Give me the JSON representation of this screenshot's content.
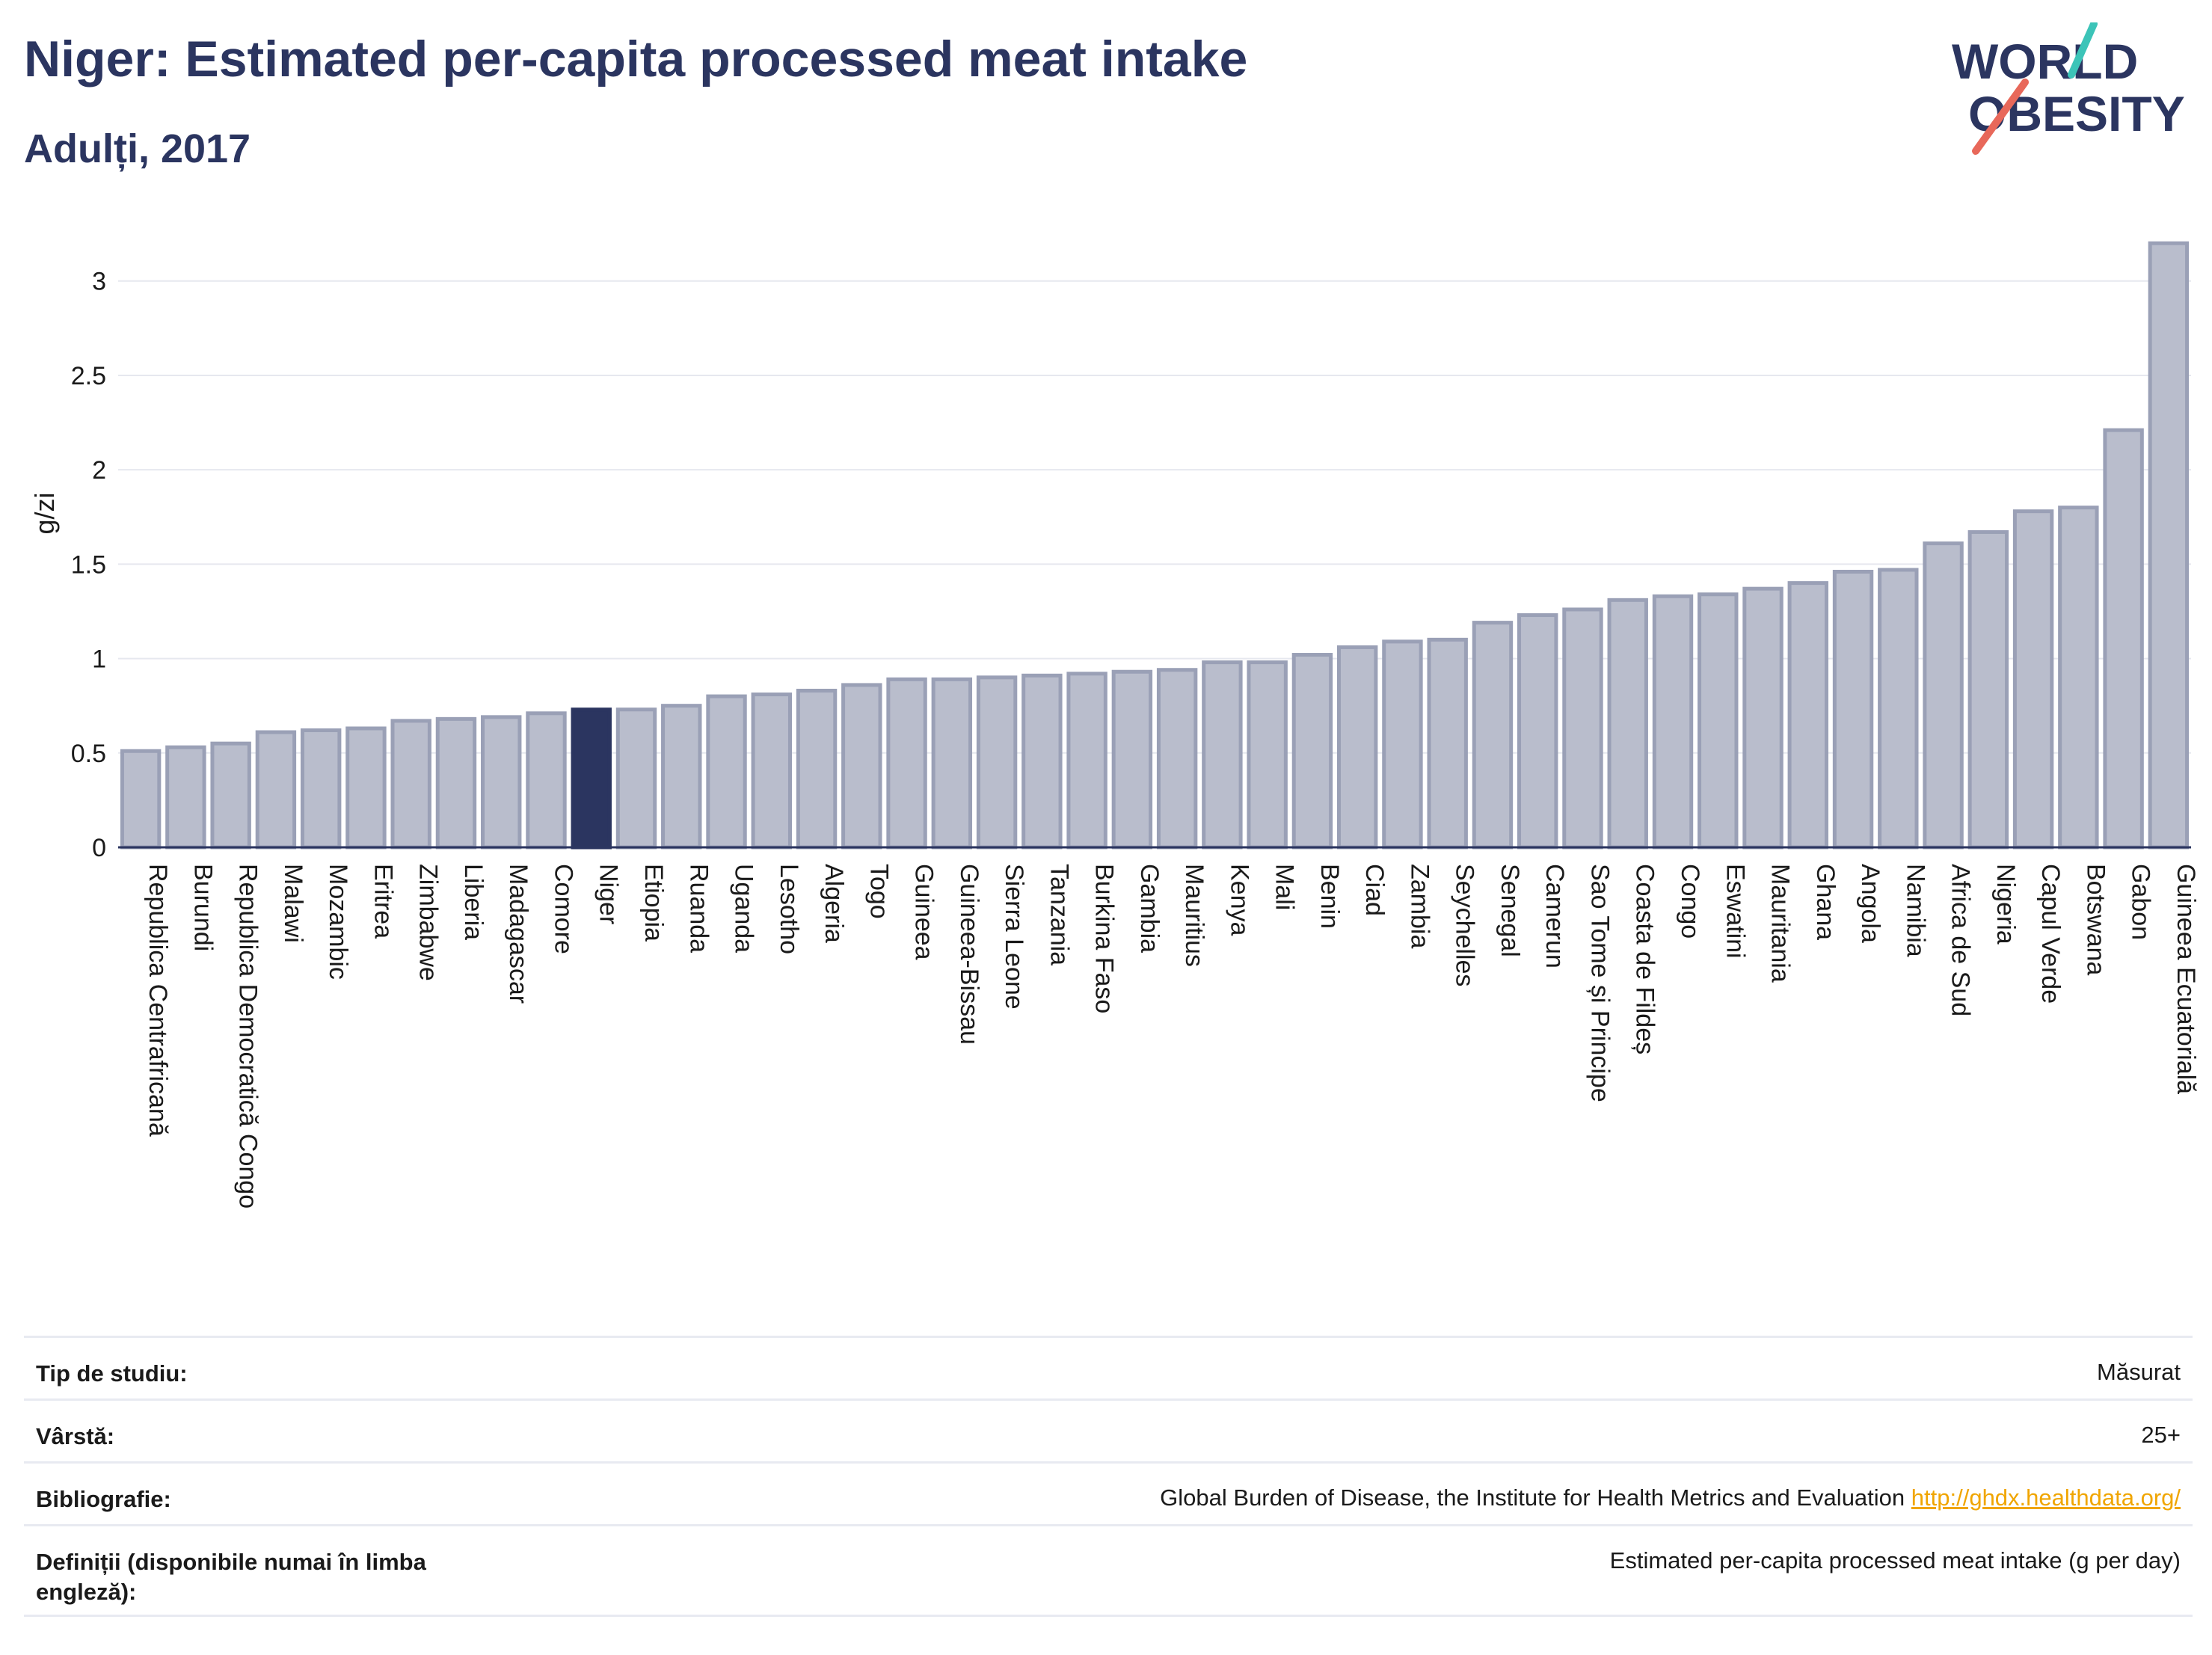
{
  "header": {
    "title": "Niger: Estimated per-capita processed meat intake",
    "subtitle": "Adulți, 2017"
  },
  "logo": {
    "line1": "WORLD",
    "line2": "OBESITY",
    "accent_teal": "#3cc4b8",
    "accent_red": "#e8685a"
  },
  "colors": {
    "bar": "#b9bdcc",
    "bar_stroke": "#9aa0b6",
    "highlight": "#2b3560",
    "axis": "#2b3560",
    "grid": "#e6e8ef"
  },
  "chart_data": {
    "type": "bar",
    "ylabel": "g/zi",
    "ylim": [
      0,
      3.3
    ],
    "yticks": [
      0,
      0.5,
      1,
      1.5,
      2,
      2.5,
      3
    ],
    "ytick_labels": [
      "0",
      "0.5",
      "1",
      "1.5",
      "2",
      "2.5",
      "3"
    ],
    "grid": true,
    "highlight": "Niger",
    "categories": [
      "Republica Centrafricană",
      "Burundi",
      "Republica Democratică Congo",
      "Malawi",
      "Mozambic",
      "Eritrea",
      "Zimbabwe",
      "Liberia",
      "Madagascar",
      "Comore",
      "Niger",
      "Etiopia",
      "Ruanda",
      "Uganda",
      "Lesotho",
      "Algeria",
      "Togo",
      "Guineea",
      "Guineea-Bissau",
      "Sierra Leone",
      "Tanzania",
      "Burkina Faso",
      "Gambia",
      "Mauritius",
      "Kenya",
      "Mali",
      "Benin",
      "Ciad",
      "Zambia",
      "Seychelles",
      "Senegal",
      "Camerun",
      "Sao Tome și Principe",
      "Coasta de Fildeș",
      "Congo",
      "Eswatini",
      "Mauritania",
      "Ghana",
      "Angola",
      "Namibia",
      "Africa de Sud",
      "Nigeria",
      "Capul Verde",
      "Botswana",
      "Gabon",
      "Guineea Ecuatorială"
    ],
    "values": [
      0.51,
      0.53,
      0.55,
      0.61,
      0.62,
      0.63,
      0.67,
      0.68,
      0.69,
      0.71,
      0.73,
      0.73,
      0.75,
      0.8,
      0.81,
      0.83,
      0.86,
      0.89,
      0.89,
      0.9,
      0.91,
      0.92,
      0.93,
      0.94,
      0.98,
      0.98,
      1.02,
      1.06,
      1.09,
      1.1,
      1.19,
      1.23,
      1.26,
      1.31,
      1.33,
      1.34,
      1.37,
      1.4,
      1.46,
      1.47,
      1.61,
      1.67,
      1.78,
      1.8,
      2.21,
      3.2
    ]
  },
  "info": {
    "rows": [
      {
        "label": "Tip de studiu:",
        "value": "Măsurat"
      },
      {
        "label": "Vârstă:",
        "value": "25+"
      },
      {
        "label": "Bibliografie:",
        "value": "Global Burden of Disease, the Institute for Health Metrics and Evaluation",
        "link": "http://ghdx.healthdata.org/"
      },
      {
        "label": "Definiții (disponibile numai în limba engleză):",
        "value": "Estimated per-capita processed meat intake (g per day)"
      }
    ]
  }
}
